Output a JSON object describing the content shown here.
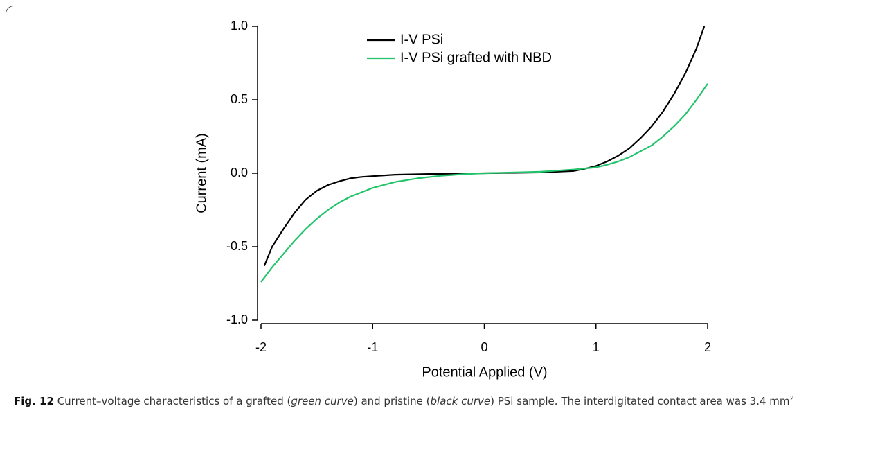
{
  "chart_data": {
    "type": "line",
    "xlabel": "Potential Applied (V)",
    "ylabel": "Current (mA)",
    "xlim": [
      -2,
      2
    ],
    "xticks": [
      -2,
      -1,
      0,
      1,
      2
    ],
    "ylim": [
      -1,
      1
    ],
    "yticks": [
      {
        "value": -1,
        "label": "-1.0"
      },
      {
        "value": -0.5,
        "label": "-0.5"
      },
      {
        "value": 0,
        "label": "0.0"
      },
      {
        "value": 0.5,
        "label": "0.5"
      },
      {
        "value": 1,
        "label": "1.0"
      }
    ],
    "series": [
      {
        "name": "I-V PSi",
        "color": "#000000",
        "x": [
          -1.97,
          -1.9,
          -1.8,
          -1.7,
          -1.6,
          -1.5,
          -1.4,
          -1.3,
          -1.2,
          -1.1,
          -1,
          -0.8,
          -0.5,
          0,
          0.5,
          0.8,
          0.9,
          1,
          1.1,
          1.2,
          1.3,
          1.4,
          1.5,
          1.6,
          1.7,
          1.8,
          1.9,
          1.97
        ],
        "values": [
          -0.63,
          -0.5,
          -0.38,
          -0.27,
          -0.18,
          -0.12,
          -0.08,
          -0.055,
          -0.035,
          -0.025,
          -0.02,
          -0.01,
          -0.005,
          0,
          0.005,
          0.015,
          0.03,
          0.05,
          0.08,
          0.12,
          0.17,
          0.24,
          0.32,
          0.42,
          0.54,
          0.68,
          0.85,
          1.0
        ]
      },
      {
        "name": "I-V PSi grafted with NBD",
        "color": "#22c46b",
        "x": [
          -2,
          -1.9,
          -1.8,
          -1.7,
          -1.6,
          -1.5,
          -1.4,
          -1.3,
          -1.2,
          -1.1,
          -1,
          -0.8,
          -0.6,
          -0.4,
          -0.2,
          0,
          0.5,
          0.8,
          1,
          1.1,
          1.2,
          1.3,
          1.4,
          1.5,
          1.6,
          1.7,
          1.8,
          1.9,
          2
        ],
        "values": [
          -0.74,
          -0.64,
          -0.55,
          -0.46,
          -0.38,
          -0.31,
          -0.25,
          -0.2,
          -0.16,
          -0.13,
          -0.1,
          -0.06,
          -0.035,
          -0.018,
          -0.007,
          0,
          0.01,
          0.025,
          0.04,
          0.058,
          0.08,
          0.11,
          0.15,
          0.19,
          0.25,
          0.32,
          0.4,
          0.5,
          0.61
        ]
      }
    ]
  },
  "caption": {
    "label": "Fig. 12",
    "parts": [
      {
        "text": " Current–voltage characteristics of a grafted ("
      },
      {
        "text": "green curve",
        "italic": true
      },
      {
        "text": ") and pristine ("
      },
      {
        "text": "black curve",
        "italic": true
      },
      {
        "text": ") PSi sample. The interdigitated contact area was 3.4 mm"
      },
      {
        "text": "2",
        "sup": true
      }
    ]
  }
}
